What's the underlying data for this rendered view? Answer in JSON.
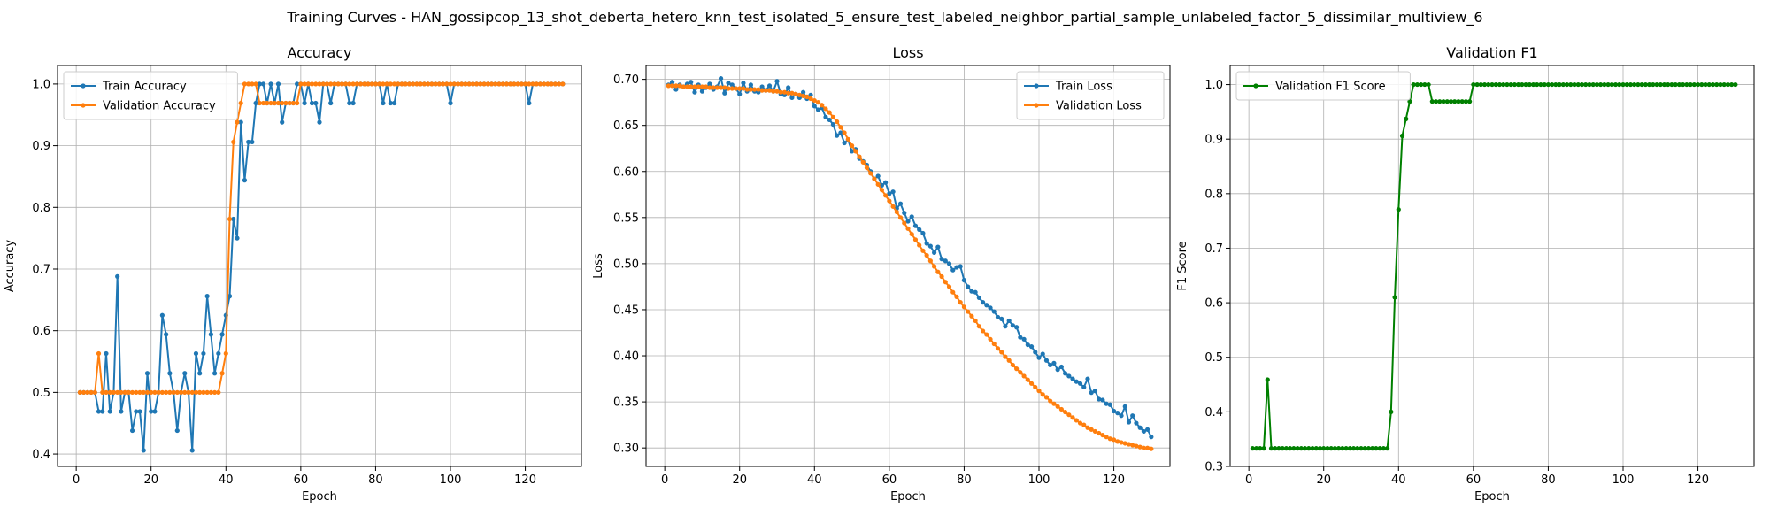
{
  "figure": {
    "title": "Training Curves - HAN_gossipcop_13_shot_deberta_hetero_knn_test_isolated_5_ensure_test_labeled_neighbor_partial_sample_unlabeled_factor_5_dissimilar_multiview_6"
  },
  "colors": {
    "blue": "#1f77b4",
    "orange": "#ff7f0e",
    "green": "#008000",
    "grid": "#b0b0b0"
  },
  "chart_data": [
    {
      "type": "line",
      "title": "Accuracy",
      "xlabel": "Epoch",
      "ylabel": "Accuracy",
      "xlim": [
        -5,
        135
      ],
      "ylim": [
        0.38,
        1.03
      ],
      "xticks": [
        0,
        20,
        40,
        60,
        80,
        100,
        120
      ],
      "yticks": [
        0.4,
        0.5,
        0.6,
        0.7,
        0.8,
        0.9,
        1.0
      ],
      "ytick_decimals": 1,
      "grid": true,
      "legend": "upper-left",
      "x": [
        1,
        2,
        3,
        4,
        5,
        6,
        7,
        8,
        9,
        10,
        11,
        12,
        13,
        14,
        15,
        16,
        17,
        18,
        19,
        20,
        21,
        22,
        23,
        24,
        25,
        26,
        27,
        28,
        29,
        30,
        31,
        32,
        33,
        34,
        35,
        36,
        37,
        38,
        39,
        40,
        41,
        42,
        43,
        44,
        45,
        46,
        47,
        48,
        49,
        50,
        51,
        52,
        53,
        54,
        55,
        56,
        57,
        58,
        59,
        60,
        61,
        62,
        63,
        64,
        65,
        66,
        67,
        68,
        69,
        70,
        71,
        72,
        73,
        74,
        75,
        76,
        77,
        78,
        79,
        80,
        81,
        82,
        83,
        84,
        85,
        86,
        87,
        88,
        89,
        90,
        91,
        92,
        93,
        94,
        95,
        96,
        97,
        98,
        99,
        100,
        101,
        102,
        103,
        104,
        105,
        106,
        107,
        108,
        109,
        110,
        111,
        112,
        113,
        114,
        115,
        116,
        117,
        118,
        119,
        120,
        121,
        122,
        123,
        124,
        125,
        126,
        127,
        128,
        129,
        130
      ],
      "series": [
        {
          "name": "Train Accuracy",
          "color": "#1f77b4",
          "values": [
            0.5,
            0.5,
            0.5,
            0.5,
            0.5,
            0.469,
            0.469,
            0.563,
            0.469,
            0.5,
            0.688,
            0.469,
            0.5,
            0.5,
            0.438,
            0.469,
            0.469,
            0.406,
            0.531,
            0.469,
            0.469,
            0.5,
            0.625,
            0.594,
            0.531,
            0.5,
            0.438,
            0.5,
            0.531,
            0.5,
            0.406,
            0.563,
            0.531,
            0.563,
            0.656,
            0.594,
            0.531,
            0.563,
            0.594,
            0.625,
            0.656,
            0.781,
            0.75,
            0.938,
            0.844,
            0.906,
            0.906,
            0.969,
            1.0,
            1.0,
            0.969,
            1.0,
            0.969,
            1.0,
            0.938,
            0.969,
            0.969,
            0.969,
            1.0,
            1.0,
            0.969,
            1.0,
            0.969,
            0.969,
            0.938,
            1.0,
            1.0,
            0.969,
            1.0,
            1.0,
            1.0,
            1.0,
            0.969,
            0.969,
            1.0,
            1.0,
            1.0,
            1.0,
            1.0,
            1.0,
            1.0,
            0.969,
            1.0,
            0.969,
            0.969,
            1.0,
            1.0,
            1.0,
            1.0,
            1.0,
            1.0,
            1.0,
            1.0,
            1.0,
            1.0,
            1.0,
            1.0,
            1.0,
            1.0,
            0.969,
            1.0,
            1.0,
            1.0,
            1.0,
            1.0,
            1.0,
            1.0,
            1.0,
            1.0,
            1.0,
            1.0,
            1.0,
            1.0,
            1.0,
            1.0,
            1.0,
            1.0,
            1.0,
            1.0,
            1.0,
            0.969,
            1.0,
            1.0,
            1.0,
            1.0,
            1.0,
            1.0,
            1.0,
            1.0,
            1.0
          ]
        },
        {
          "name": "Validation Accuracy",
          "color": "#ff7f0e",
          "values": [
            0.5,
            0.5,
            0.5,
            0.5,
            0.5,
            0.563,
            0.5,
            0.5,
            0.5,
            0.5,
            0.5,
            0.5,
            0.5,
            0.5,
            0.5,
            0.5,
            0.5,
            0.5,
            0.5,
            0.5,
            0.5,
            0.5,
            0.5,
            0.5,
            0.5,
            0.5,
            0.5,
            0.5,
            0.5,
            0.5,
            0.5,
            0.5,
            0.5,
            0.5,
            0.5,
            0.5,
            0.5,
            0.5,
            0.531,
            0.563,
            0.781,
            0.906,
            0.938,
            0.969,
            1.0,
            1.0,
            1.0,
            1.0,
            0.969,
            0.969,
            0.969,
            0.969,
            0.969,
            0.969,
            0.969,
            0.969,
            0.969,
            0.969,
            0.969,
            1.0,
            1.0,
            1.0,
            1.0,
            1.0,
            1.0,
            1.0,
            1.0,
            1.0,
            1.0,
            1.0,
            1.0,
            1.0,
            1.0,
            1.0,
            1.0,
            1.0,
            1.0,
            1.0,
            1.0,
            1.0,
            1.0,
            1.0,
            1.0,
            1.0,
            1.0,
            1.0,
            1.0,
            1.0,
            1.0,
            1.0,
            1.0,
            1.0,
            1.0,
            1.0,
            1.0,
            1.0,
            1.0,
            1.0,
            1.0,
            1.0,
            1.0,
            1.0,
            1.0,
            1.0,
            1.0,
            1.0,
            1.0,
            1.0,
            1.0,
            1.0,
            1.0,
            1.0,
            1.0,
            1.0,
            1.0,
            1.0,
            1.0,
            1.0,
            1.0,
            1.0,
            1.0,
            1.0,
            1.0,
            1.0,
            1.0,
            1.0,
            1.0,
            1.0,
            1.0,
            1.0
          ]
        }
      ]
    },
    {
      "type": "line",
      "title": "Loss",
      "xlabel": "Epoch",
      "ylabel": "Loss",
      "xlim": [
        -5,
        135
      ],
      "ylim": [
        0.28,
        0.715
      ],
      "xticks": [
        0,
        20,
        40,
        60,
        80,
        100,
        120
      ],
      "yticks": [
        0.3,
        0.35,
        0.4,
        0.45,
        0.5,
        0.55,
        0.6,
        0.65,
        0.7
      ],
      "ytick_decimals": 2,
      "grid": true,
      "legend": "upper-right",
      "x": [
        1,
        2,
        3,
        4,
        5,
        6,
        7,
        8,
        9,
        10,
        11,
        12,
        13,
        14,
        15,
        16,
        17,
        18,
        19,
        20,
        21,
        22,
        23,
        24,
        25,
        26,
        27,
        28,
        29,
        30,
        31,
        32,
        33,
        34,
        35,
        36,
        37,
        38,
        39,
        40,
        41,
        42,
        43,
        44,
        45,
        46,
        47,
        48,
        49,
        50,
        51,
        52,
        53,
        54,
        55,
        56,
        57,
        58,
        59,
        60,
        61,
        62,
        63,
        64,
        65,
        66,
        67,
        68,
        69,
        70,
        71,
        72,
        73,
        74,
        75,
        76,
        77,
        78,
        79,
        80,
        81,
        82,
        83,
        84,
        85,
        86,
        87,
        88,
        89,
        90,
        91,
        92,
        93,
        94,
        95,
        96,
        97,
        98,
        99,
        100,
        101,
        102,
        103,
        104,
        105,
        106,
        107,
        108,
        109,
        110,
        111,
        112,
        113,
        114,
        115,
        116,
        117,
        118,
        119,
        120,
        121,
        122,
        123,
        124,
        125,
        126,
        127,
        128,
        129,
        130
      ],
      "series": [
        {
          "name": "Train Loss",
          "color": "#1f77b4",
          "values": [
            0.694,
            0.697,
            0.689,
            0.694,
            0.692,
            0.695,
            0.697,
            0.686,
            0.694,
            0.687,
            0.691,
            0.695,
            0.689,
            0.692,
            0.701,
            0.685,
            0.696,
            0.694,
            0.69,
            0.684,
            0.696,
            0.687,
            0.694,
            0.687,
            0.686,
            0.692,
            0.688,
            0.693,
            0.687,
            0.698,
            0.684,
            0.683,
            0.691,
            0.68,
            0.684,
            0.68,
            0.686,
            0.679,
            0.683,
            0.671,
            0.667,
            0.669,
            0.659,
            0.656,
            0.651,
            0.639,
            0.642,
            0.631,
            0.634,
            0.622,
            0.624,
            0.614,
            0.611,
            0.607,
            0.6,
            0.592,
            0.595,
            0.585,
            0.588,
            0.576,
            0.578,
            0.56,
            0.565,
            0.555,
            0.546,
            0.551,
            0.541,
            0.537,
            0.533,
            0.522,
            0.519,
            0.512,
            0.518,
            0.505,
            0.503,
            0.5,
            0.493,
            0.496,
            0.497,
            0.482,
            0.475,
            0.47,
            0.469,
            0.463,
            0.458,
            0.455,
            0.452,
            0.448,
            0.442,
            0.44,
            0.432,
            0.438,
            0.433,
            0.431,
            0.42,
            0.418,
            0.412,
            0.41,
            0.404,
            0.398,
            0.402,
            0.395,
            0.39,
            0.392,
            0.385,
            0.388,
            0.381,
            0.378,
            0.375,
            0.372,
            0.37,
            0.366,
            0.375,
            0.36,
            0.362,
            0.353,
            0.352,
            0.348,
            0.347,
            0.34,
            0.338,
            0.335,
            0.345,
            0.328,
            0.335,
            0.327,
            0.322,
            0.318,
            0.32,
            0.312
          ]
        },
        {
          "name": "Validation Loss",
          "color": "#ff7f0e",
          "values": [
            0.693,
            0.693,
            0.693,
            0.693,
            0.692,
            0.692,
            0.692,
            0.692,
            0.692,
            0.692,
            0.692,
            0.691,
            0.691,
            0.691,
            0.691,
            0.691,
            0.69,
            0.69,
            0.69,
            0.69,
            0.69,
            0.689,
            0.689,
            0.689,
            0.689,
            0.688,
            0.688,
            0.688,
            0.687,
            0.687,
            0.686,
            0.686,
            0.685,
            0.685,
            0.684,
            0.683,
            0.682,
            0.681,
            0.679,
            0.677,
            0.675,
            0.672,
            0.668,
            0.664,
            0.659,
            0.654,
            0.648,
            0.642,
            0.635,
            0.628,
            0.622,
            0.616,
            0.61,
            0.604,
            0.598,
            0.592,
            0.586,
            0.58,
            0.574,
            0.568,
            0.562,
            0.556,
            0.55,
            0.544,
            0.538,
            0.532,
            0.526,
            0.52,
            0.514,
            0.509,
            0.503,
            0.497,
            0.491,
            0.486,
            0.48,
            0.475,
            0.469,
            0.464,
            0.458,
            0.453,
            0.448,
            0.443,
            0.438,
            0.432,
            0.427,
            0.423,
            0.418,
            0.413,
            0.408,
            0.404,
            0.399,
            0.395,
            0.39,
            0.386,
            0.382,
            0.378,
            0.374,
            0.37,
            0.366,
            0.362,
            0.358,
            0.355,
            0.351,
            0.348,
            0.345,
            0.342,
            0.339,
            0.336,
            0.333,
            0.33,
            0.327,
            0.325,
            0.322,
            0.32,
            0.318,
            0.316,
            0.314,
            0.312,
            0.31,
            0.309,
            0.307,
            0.306,
            0.305,
            0.304,
            0.303,
            0.302,
            0.301,
            0.3,
            0.3,
            0.299
          ]
        }
      ]
    },
    {
      "type": "line",
      "title": "Validation F1",
      "xlabel": "Epoch",
      "ylabel": "F1 Score",
      "xlim": [
        -5,
        135
      ],
      "ylim": [
        0.3,
        1.035
      ],
      "xticks": [
        0,
        20,
        40,
        60,
        80,
        100,
        120
      ],
      "yticks": [
        0.3,
        0.4,
        0.5,
        0.6,
        0.7,
        0.8,
        0.9,
        1.0
      ],
      "ytick_decimals": 1,
      "grid": true,
      "legend": "upper-left",
      "x": [
        1,
        2,
        3,
        4,
        5,
        6,
        7,
        8,
        9,
        10,
        11,
        12,
        13,
        14,
        15,
        16,
        17,
        18,
        19,
        20,
        21,
        22,
        23,
        24,
        25,
        26,
        27,
        28,
        29,
        30,
        31,
        32,
        33,
        34,
        35,
        36,
        37,
        38,
        39,
        40,
        41,
        42,
        43,
        44,
        45,
        46,
        47,
        48,
        49,
        50,
        51,
        52,
        53,
        54,
        55,
        56,
        57,
        58,
        59,
        60,
        61,
        62,
        63,
        64,
        65,
        66,
        67,
        68,
        69,
        70,
        71,
        72,
        73,
        74,
        75,
        76,
        77,
        78,
        79,
        80,
        81,
        82,
        83,
        84,
        85,
        86,
        87,
        88,
        89,
        90,
        91,
        92,
        93,
        94,
        95,
        96,
        97,
        98,
        99,
        100,
        101,
        102,
        103,
        104,
        105,
        106,
        107,
        108,
        109,
        110,
        111,
        112,
        113,
        114,
        115,
        116,
        117,
        118,
        119,
        120,
        121,
        122,
        123,
        124,
        125,
        126,
        127,
        128,
        129,
        130
      ],
      "series": [
        {
          "name": "Validation F1 Score",
          "color": "#008000",
          "values": [
            0.333,
            0.333,
            0.333,
            0.333,
            0.459,
            0.333,
            0.333,
            0.333,
            0.333,
            0.333,
            0.333,
            0.333,
            0.333,
            0.333,
            0.333,
            0.333,
            0.333,
            0.333,
            0.333,
            0.333,
            0.333,
            0.333,
            0.333,
            0.333,
            0.333,
            0.333,
            0.333,
            0.333,
            0.333,
            0.333,
            0.333,
            0.333,
            0.333,
            0.333,
            0.333,
            0.333,
            0.333,
            0.4,
            0.61,
            0.771,
            0.906,
            0.937,
            0.969,
            1.0,
            1.0,
            1.0,
            1.0,
            1.0,
            0.969,
            0.969,
            0.969,
            0.969,
            0.969,
            0.969,
            0.969,
            0.969,
            0.969,
            0.969,
            0.969,
            1.0,
            1.0,
            1.0,
            1.0,
            1.0,
            1.0,
            1.0,
            1.0,
            1.0,
            1.0,
            1.0,
            1.0,
            1.0,
            1.0,
            1.0,
            1.0,
            1.0,
            1.0,
            1.0,
            1.0,
            1.0,
            1.0,
            1.0,
            1.0,
            1.0,
            1.0,
            1.0,
            1.0,
            1.0,
            1.0,
            1.0,
            1.0,
            1.0,
            1.0,
            1.0,
            1.0,
            1.0,
            1.0,
            1.0,
            1.0,
            1.0,
            1.0,
            1.0,
            1.0,
            1.0,
            1.0,
            1.0,
            1.0,
            1.0,
            1.0,
            1.0,
            1.0,
            1.0,
            1.0,
            1.0,
            1.0,
            1.0,
            1.0,
            1.0,
            1.0,
            1.0,
            1.0,
            1.0,
            1.0,
            1.0,
            1.0,
            1.0,
            1.0,
            1.0,
            1.0,
            1.0
          ]
        }
      ]
    }
  ]
}
